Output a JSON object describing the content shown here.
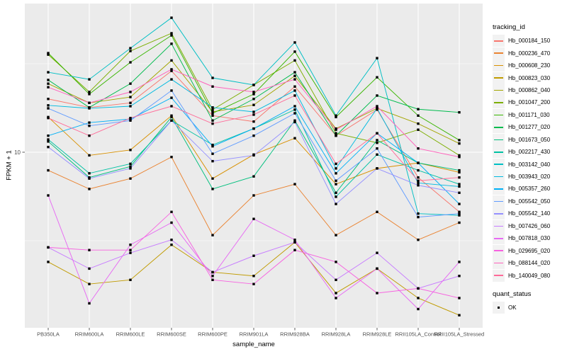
{
  "figure": {
    "background": "#FFFFFF",
    "panel_background": "#EBEBEB",
    "grid_color": "#FFFFFF",
    "tick_label_color": "#4D4D4D",
    "tick_mark_color": "#333333"
  },
  "chart_data": {
    "type": "line",
    "title": "",
    "xlabel": "sample_name",
    "ylabel": "FPKM + 1",
    "y_scale": "log10",
    "ylim": [
      1.1,
      65
    ],
    "grid": true,
    "legend_position": "right",
    "point_marker": {
      "shape": "square",
      "color": "#000000"
    },
    "y_ticks": [
      {
        "value": 10,
        "label": "10"
      }
    ],
    "y_minor_breaks": [
      31.62,
      3.162
    ],
    "categories": [
      "PB350LA",
      "RRIM600LA",
      "RRIM600LE",
      "RRIM600SE",
      "RRIM600PE",
      "RRIM901LA",
      "RRIM928BA",
      "RRIM928LA",
      "RRIM928LE",
      "RRII105LA_Control",
      "RRII105LA_Stressed"
    ],
    "series": [
      {
        "name": "Hb_000184_150",
        "color": "#F8766D",
        "values": [
          20,
          17.9,
          19,
          28.8,
          16.1,
          14.9,
          23.5,
          12.4,
          17.4,
          7.2,
          4.6
        ]
      },
      {
        "name": "Hb_000236_470",
        "color": "#EA8331",
        "values": [
          7.9,
          6.2,
          7.1,
          9.4,
          3.4,
          5.7,
          6.6,
          3.4,
          4.6,
          3.2,
          4.0
        ]
      },
      {
        "name": "Hb_000608_230",
        "color": "#D89000",
        "values": [
          15.8,
          9.6,
          10.3,
          16.1,
          7.1,
          9.7,
          12,
          6.6,
          8.1,
          8.7,
          7.7
        ]
      },
      {
        "name": "Hb_000823_030",
        "color": "#C09B00",
        "values": [
          2.4,
          1.8,
          1.9,
          3.0,
          2.1,
          2.0,
          3.1,
          1.6,
          2.2,
          1.5,
          1.2
        ]
      },
      {
        "name": "Hb_000862_040",
        "color": "#A3A500",
        "values": [
          24.4,
          19,
          20.5,
          33,
          16.9,
          18.5,
          27,
          13.6,
          17.7,
          14.5,
          11.2
        ]
      },
      {
        "name": "Hb_001047_200",
        "color": "#7CAE00",
        "values": [
          35.6,
          21.9,
          37.3,
          47,
          17.4,
          24,
          33,
          12.8,
          11.3,
          13.4,
          9.6
        ]
      },
      {
        "name": "Hb_001171_030",
        "color": "#39B600",
        "values": [
          36.3,
          21.3,
          32.2,
          45.7,
          16.6,
          21.3,
          37,
          15.8,
          26.5,
          16.1,
          11.7
        ]
      },
      {
        "name": "Hb_001277_020",
        "color": "#00BB4E",
        "values": [
          25.6,
          17.9,
          24.4,
          41,
          15.1,
          20,
          28.3,
          12.4,
          20.9,
          17.5,
          16.8
        ]
      },
      {
        "name": "Hb_001673_050",
        "color": "#00BF7D",
        "values": [
          11.5,
          7.2,
          8.3,
          15.8,
          6.2,
          7.3,
          15.1,
          5.9,
          11.7,
          8.7,
          7.9
        ]
      },
      {
        "name": "Hb_002217_430",
        "color": "#00C1A3",
        "values": [
          11.8,
          7.6,
          8.6,
          15.1,
          11,
          13.6,
          17.4,
          5.6,
          9.7,
          7.9,
          6.6
        ]
      },
      {
        "name": "Hb_003142_040",
        "color": "#00BFC4",
        "values": [
          28.3,
          25.8,
          38.7,
          57.5,
          26.3,
          24,
          41.7,
          16.1,
          34,
          4.5,
          4.4
        ]
      },
      {
        "name": "Hb_003943_020",
        "color": "#00BAE0",
        "values": [
          18.4,
          17.7,
          18.2,
          25.8,
          17.9,
          16.9,
          22.3,
          8.1,
          17.7,
          6.7,
          6.4
        ]
      },
      {
        "name": "Hb_005357_260",
        "color": "#00B0F6",
        "values": [
          12.4,
          14.7,
          15.4,
          20.3,
          10.8,
          13.6,
          18.2,
          7.6,
          12.8,
          8.7,
          5.1
        ]
      },
      {
        "name": "Hb_005542_050",
        "color": "#619CFF",
        "values": [
          17.7,
          14.1,
          15.1,
          22.3,
          9.8,
          12.4,
          16.6,
          6.9,
          10.5,
          4.3,
          4.5
        ]
      },
      {
        "name": "Hb_005542_140",
        "color": "#9590FF",
        "values": [
          10.7,
          7.1,
          8.1,
          15.1,
          8.9,
          9.6,
          14.8,
          5.1,
          8.1,
          6.5,
          5.9
        ]
      },
      {
        "name": "Hb_007426_060",
        "color": "#C77CFF",
        "values": [
          2.9,
          2.2,
          2.7,
          3.2,
          2.1,
          2.6,
          3.1,
          1.9,
          2.7,
          1.7,
          2.0
        ]
      },
      {
        "name": "Hb_007818_030",
        "color": "#E76BF3",
        "values": [
          5.7,
          1.4,
          3.0,
          4.0,
          2.0,
          4.2,
          3.2,
          1.5,
          2.2,
          1.3,
          2.4
        ]
      },
      {
        "name": "Hb_029695_020",
        "color": "#F763E0",
        "values": [
          2.9,
          2.8,
          2.8,
          4.6,
          1.9,
          1.8,
          2.8,
          2.4,
          1.6,
          1.7,
          1.5
        ]
      },
      {
        "name": "Hb_088144_020",
        "color": "#FF62BC",
        "values": [
          23.3,
          19,
          21.9,
          29.4,
          23.5,
          21.9,
          25.8,
          13.4,
          18.2,
          10.5,
          9.4
        ]
      },
      {
        "name": "Hb_140049_080",
        "color": "#FF6A98",
        "values": [
          15.6,
          12.4,
          15.6,
          18.2,
          14.5,
          16.3,
          20.9,
          8.6,
          12.8,
          6.9,
          7.2
        ]
      }
    ]
  },
  "legend": {
    "tracking_id_title": "tracking_id",
    "quant_status_title": "quant_status",
    "quant_status_items": [
      {
        "label": "OK",
        "marker": "black-square"
      }
    ]
  }
}
